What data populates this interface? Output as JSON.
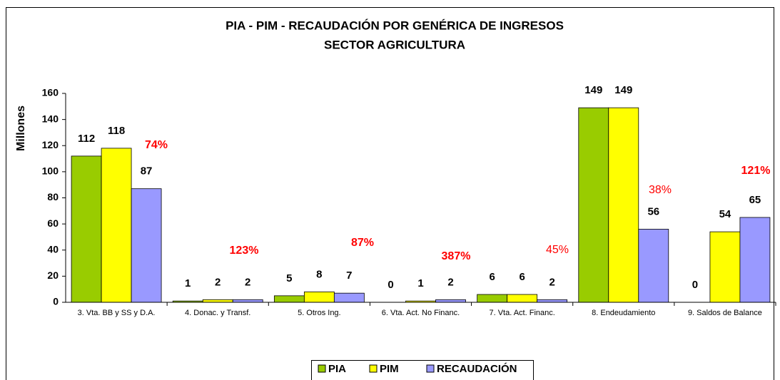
{
  "chart_data": {
    "type": "bar",
    "title": "PIA - PIM - RECAUDACIÓN POR GENÉRICA DE INGRESOS",
    "subtitle": "SECTOR AGRICULTURA",
    "y_label": "Millones",
    "categories": [
      "3. Vta. BB y SS y D.A.",
      "4. Donac. y Transf.",
      "5. Otros Ing.",
      "6. Vta. Act. No Financ.",
      "7. Vta. Act. Financ.",
      "8. Endeudamiento",
      "9. Saldos de Balance"
    ],
    "series": [
      {
        "name": "PIA",
        "color": "#99cc00",
        "values": [
          112,
          1,
          5,
          0,
          6,
          149,
          0
        ]
      },
      {
        "name": "PIM",
        "color": "#ffff00",
        "values": [
          118,
          2,
          8,
          1,
          6,
          149,
          54
        ]
      },
      {
        "name": "RECAUDACIÓN",
        "color": "#9999ff",
        "values": [
          87,
          2,
          7,
          2,
          2,
          56,
          65
        ]
      }
    ],
    "annotations": [
      {
        "text": "74%",
        "bold": true
      },
      {
        "text": "123%",
        "bold": true
      },
      {
        "text": "87%",
        "bold": true
      },
      {
        "text": "387%",
        "bold": true
      },
      {
        "text": "45%",
        "bold": false
      },
      {
        "text": "38%",
        "bold": false
      },
      {
        "text": "121%",
        "bold": true
      }
    ],
    "annotation_color": "#ff0000",
    "ylim": [
      0,
      160
    ],
    "yticks": [
      0,
      20,
      40,
      60,
      80,
      100,
      120,
      140,
      160
    ],
    "grid": false,
    "legend": "bottom"
  }
}
